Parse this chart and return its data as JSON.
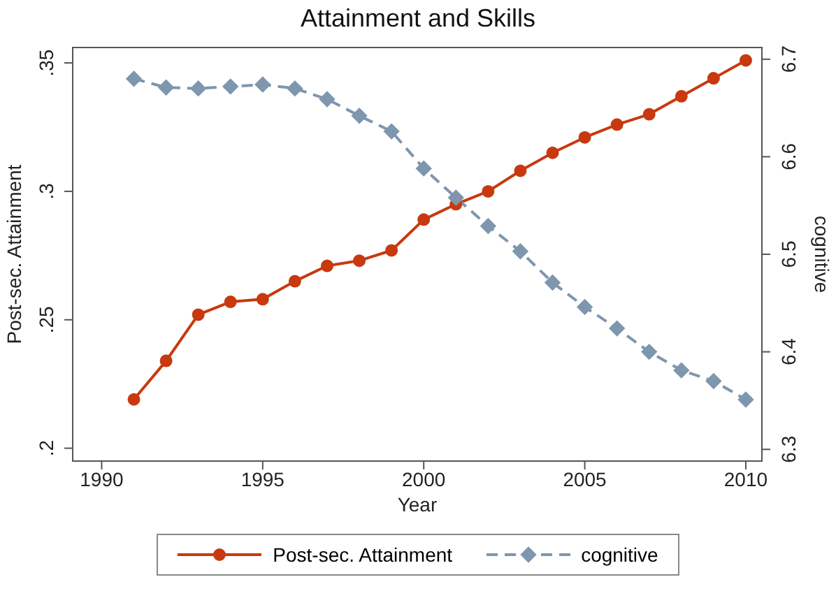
{
  "chart_data": {
    "type": "line",
    "title": "Attainment and Skills",
    "xlabel": "Year",
    "ylabel": "Post-sec. Attainment",
    "y2label": "cognitive",
    "x": [
      1991,
      1992,
      1993,
      1994,
      1995,
      1996,
      1997,
      1998,
      1999,
      2000,
      2001,
      2002,
      2003,
      2004,
      2005,
      2006,
      2007,
      2008,
      2009,
      2010
    ],
    "series": [
      {
        "name": "Post-sec. Attainment",
        "color": "#c8390f",
        "marker": "circle",
        "line_style": "solid",
        "values": [
          0.219,
          0.234,
          0.252,
          0.257,
          0.258,
          0.265,
          0.271,
          0.273,
          0.277,
          0.289,
          0.295,
          0.3,
          0.308,
          0.315,
          0.321,
          0.326,
          0.33,
          0.337,
          0.344,
          0.351
        ]
      },
      {
        "name": "cognitive",
        "color": "#7e96ae",
        "marker": "diamond",
        "line_style": "dashed",
        "axis": "y2",
        "values": [
          6.68,
          6.671,
          6.67,
          6.672,
          6.674,
          6.67,
          6.659,
          6.642,
          6.626,
          6.588,
          6.558,
          6.529,
          6.503,
          6.471,
          6.446,
          6.424,
          6.4,
          6.381,
          6.37,
          6.351
        ]
      }
    ],
    "xlim": [
      1989.1,
      2010.5
    ],
    "xticks": [
      1990,
      1995,
      2000,
      2005,
      2010
    ],
    "ylim": [
      0.195,
      0.356
    ],
    "yticks": [
      {
        "value": 0.2,
        "label": ".2"
      },
      {
        "value": 0.25,
        "label": ".25"
      },
      {
        "value": 0.3,
        "label": ".3"
      },
      {
        "value": 0.35,
        "label": ".35"
      }
    ],
    "y2lim": [
      6.288,
      6.712
    ],
    "y2ticks": [
      6.3,
      6.4,
      6.5,
      6.6,
      6.7
    ],
    "legend": "bottom"
  }
}
